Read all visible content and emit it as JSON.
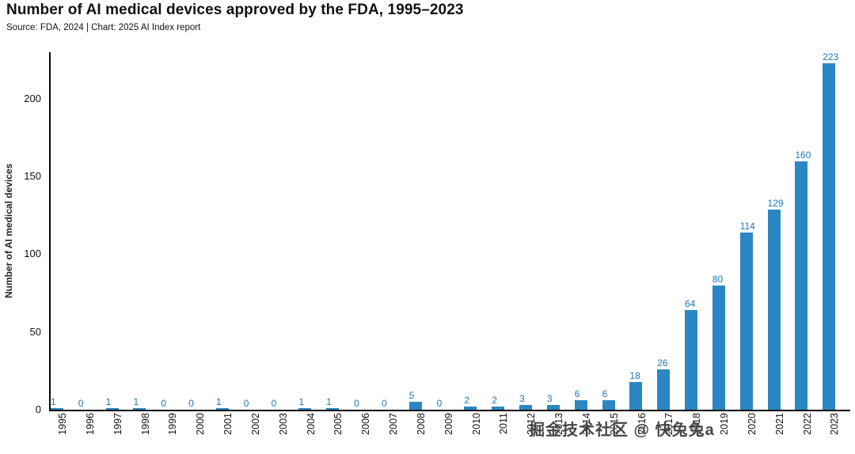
{
  "title": "Number of AI medical devices approved by the FDA, 1995–2023",
  "source": "Source: FDA, 2024 | Chart: 2025 AI Index report",
  "watermark": "掘金技术社区 @ 快兔兔a",
  "chart_data": {
    "type": "bar",
    "title": "Number of AI medical devices approved by the FDA, 1995–2023",
    "xlabel": "",
    "ylabel": "Number of AI medical devices",
    "categories": [
      "1995",
      "1996",
      "1997",
      "1998",
      "1999",
      "2000",
      "2001",
      "2002",
      "2003",
      "2004",
      "2005",
      "2006",
      "2007",
      "2008",
      "2009",
      "2010",
      "2011",
      "2012",
      "2013",
      "2014",
      "2015",
      "2016",
      "2017",
      "2018",
      "2019",
      "2020",
      "2021",
      "2022",
      "2023"
    ],
    "values": [
      1,
      0,
      1,
      1,
      0,
      0,
      1,
      0,
      0,
      1,
      1,
      0,
      0,
      5,
      0,
      2,
      2,
      3,
      3,
      6,
      6,
      18,
      26,
      64,
      80,
      114,
      129,
      160,
      223
    ],
    "ylim": [
      0,
      230
    ],
    "yticks": [
      0,
      50,
      100,
      150,
      200
    ],
    "grid": false,
    "legend": "none",
    "bar_color": "#2b87c3",
    "label_color": "#1d78b5"
  }
}
